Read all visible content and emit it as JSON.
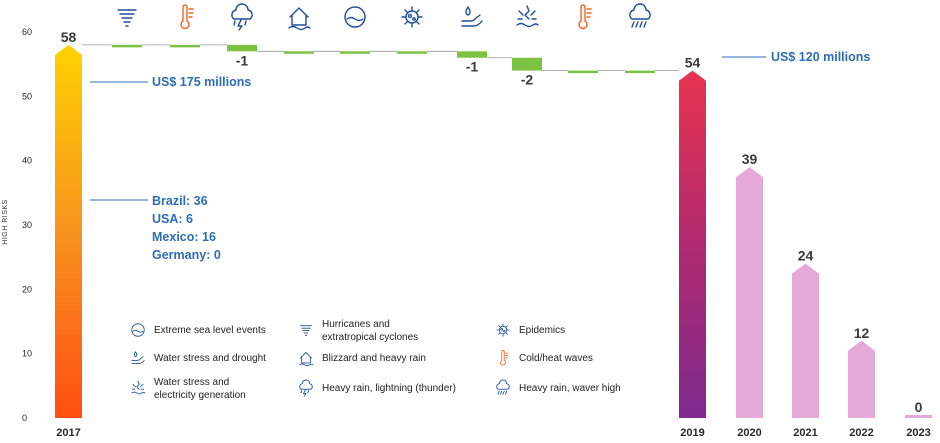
{
  "chart_data": {
    "type": "bar",
    "ylabel": "HIGH RISKS",
    "ylim": [
      0,
      60
    ],
    "yticks": [
      0,
      10,
      20,
      30,
      40,
      50,
      60
    ],
    "grid": false,
    "bars": [
      {
        "category": "2017",
        "value": 58,
        "label": "58",
        "fill": "gradient-yellow-red"
      },
      {
        "category": "2019",
        "value": 54,
        "label": "54",
        "fill": "gradient-red-purple"
      },
      {
        "category": "2020",
        "value": 39,
        "label": "39",
        "fill": "#e4a8d9"
      },
      {
        "category": "2021",
        "value": 24,
        "label": "24",
        "fill": "#e4a8d9"
      },
      {
        "category": "2022",
        "value": 12,
        "label": "12",
        "fill": "#e4a8d9"
      },
      {
        "category": "2023",
        "value": 0,
        "label": "0",
        "fill": "#e4a8d9"
      }
    ],
    "waterfall_steps": [
      {
        "icon": "hurricane-icon",
        "change": 0,
        "label": ""
      },
      {
        "icon": "thermometer-icon",
        "change": 0,
        "label": ""
      },
      {
        "icon": "thunder-rain-icon",
        "change": -1,
        "label": "-1"
      },
      {
        "icon": "blizzard-icon",
        "change": 0,
        "label": ""
      },
      {
        "icon": "sea-level-icon",
        "change": 0,
        "label": ""
      },
      {
        "icon": "epidemic-icon",
        "change": 0,
        "label": ""
      },
      {
        "icon": "water-drought-icon",
        "change": -1,
        "label": "-1"
      },
      {
        "icon": "water-electricity-icon",
        "change": -2,
        "label": "-2"
      },
      {
        "icon": "thermometer-icon",
        "change": 0,
        "label": ""
      },
      {
        "icon": "heavy-rain-icon",
        "change": 0,
        "label": ""
      }
    ],
    "annotations": {
      "cost_2017": "US$ 175 millions",
      "countries": [
        "Brazil: 36",
        "USA: 6",
        "Mexico: 16",
        "Germany: 0"
      ],
      "cost_2019": "US$ 120 millions"
    },
    "colors": {
      "step": "#7cc242",
      "text_blue": "#2e6db4",
      "pink": "#e4a8d9",
      "purple": "#8e2a8e",
      "red": "#e8344e",
      "orange": "#f26522",
      "yellow": "#ffcc00",
      "icon_blue": "#1f4e9b",
      "icon_orange": "#f26522"
    },
    "legend": [
      {
        "icon": "sea-level-icon",
        "label": "Extreme sea level events"
      },
      {
        "icon": "hurricane-icon",
        "label": "Hurricanes and extratropical cyclones"
      },
      {
        "icon": "epidemic-icon",
        "label": "Epidemics"
      },
      {
        "icon": "water-drought-icon",
        "label": "Water stress and drought"
      },
      {
        "icon": "blizzard-icon",
        "label": "Blizzard and heavy rain"
      },
      {
        "icon": "thermometer-icon",
        "label": "Cold/heat waves"
      },
      {
        "icon": "water-electricity-icon",
        "label": "Water stress and electricity generation"
      },
      {
        "icon": "thunder-rain-icon",
        "label": "Heavy rain, lightning (thunder)"
      },
      {
        "icon": "heavy-rain-icon",
        "label": "Heavy rain, waver high"
      }
    ]
  }
}
